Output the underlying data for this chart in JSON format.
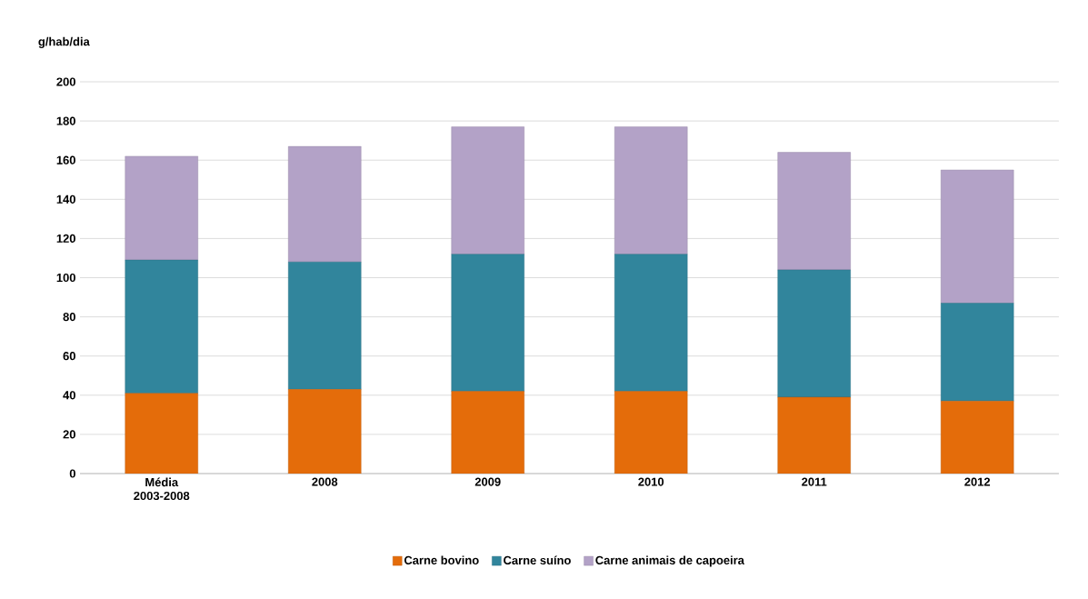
{
  "chart_data": {
    "type": "bar",
    "stacked": true,
    "ylabel": "g/hab/dia",
    "categories": [
      "Média 2003-2008",
      "2008",
      "2009",
      "2010",
      "2011",
      "2012"
    ],
    "series": [
      {
        "name": "Carne bovino",
        "color": "#e46c0a",
        "values": [
          41,
          43,
          42,
          42,
          39,
          37
        ]
      },
      {
        "name": "Carne suíno",
        "color": "#31859c",
        "values": [
          68,
          65,
          70,
          70,
          65,
          50
        ]
      },
      {
        "name": "Carne animais de capoeira",
        "color": "#b3a2c7",
        "values": [
          53,
          59,
          65,
          65,
          60,
          68
        ]
      }
    ],
    "ylim": [
      0,
      200
    ],
    "yticks": [
      0,
      20,
      40,
      60,
      80,
      100,
      120,
      140,
      160,
      180,
      200
    ],
    "grid": "y",
    "legend": "bottom"
  }
}
